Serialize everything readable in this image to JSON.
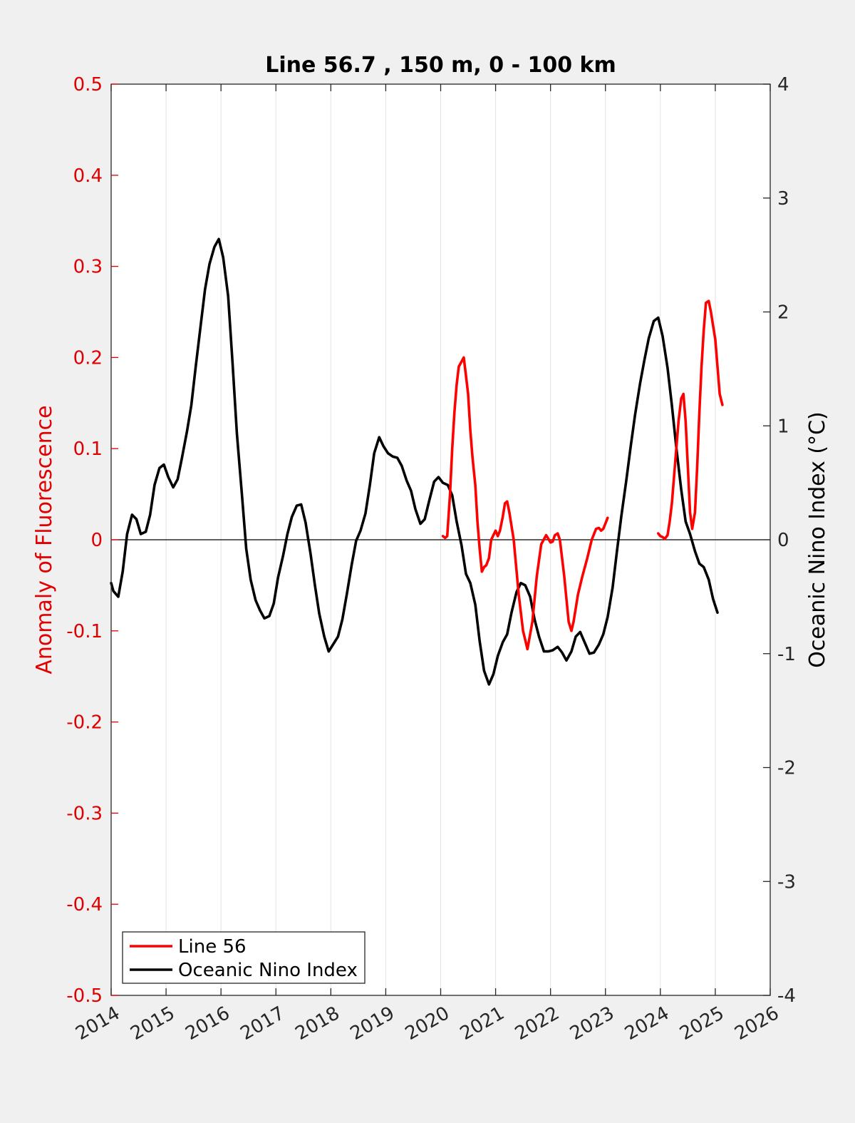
{
  "chart_data": {
    "type": "line",
    "title": "Line 56.7 , 150 m, 0 - 100 km",
    "xlabel": "",
    "ylabel_left": "Anomaly of Fluorescence",
    "ylabel_right": "Oceanic Nino Index (°C)",
    "xlim": [
      2014,
      2026
    ],
    "ylim_left": [
      -0.5,
      0.5
    ],
    "ylim_right": [
      -4,
      4
    ],
    "x_ticks": [
      2014,
      2015,
      2016,
      2017,
      2018,
      2019,
      2020,
      2021,
      2022,
      2023,
      2024,
      2025,
      2026
    ],
    "x_tick_labels": [
      "2014",
      "2015",
      "2016",
      "2017",
      "2018",
      "2019",
      "2020",
      "2021",
      "2022",
      "2023",
      "2024",
      "2025",
      "2026"
    ],
    "y_left_ticks": [
      0.5,
      0.4,
      0.3,
      0.2,
      0.1,
      0,
      -0.1,
      -0.2,
      -0.3,
      -0.4,
      -0.5
    ],
    "y_left_tick_labels": [
      "0.5",
      "0.4",
      "0.3",
      "0.2",
      "0.1",
      "0",
      "-0.1",
      "-0.2",
      "-0.3",
      "-0.4",
      "-0.5"
    ],
    "y_right_ticks": [
      4,
      3,
      2,
      1,
      0,
      -1,
      -2,
      -3,
      -4
    ],
    "y_right_tick_labels": [
      "4",
      "3",
      "2",
      "1",
      "0",
      "-1",
      "-2",
      "-3",
      "-4"
    ],
    "grid": "vertical",
    "zero_line": true,
    "legend_position": "bottom-left",
    "colors": {
      "line56": "#ff0000",
      "oni": "#000000",
      "left_axis": "#e00000",
      "right_axis": "#000000"
    },
    "series": [
      {
        "name": "Line 56",
        "axis": "left",
        "segments": [
          [
            [
              2020.04,
              0.004
            ],
            [
              2020.08,
              0.002
            ],
            [
              2020.12,
              0.004
            ],
            [
              2020.17,
              0.05
            ],
            [
              2020.21,
              0.1
            ],
            [
              2020.25,
              0.14
            ],
            [
              2020.29,
              0.17
            ],
            [
              2020.33,
              0.19
            ],
            [
              2020.42,
              0.2
            ],
            [
              2020.46,
              0.18
            ],
            [
              2020.5,
              0.16
            ],
            [
              2020.54,
              0.12
            ],
            [
              2020.58,
              0.09
            ],
            [
              2020.63,
              0.06
            ],
            [
              2020.67,
              0.02
            ],
            [
              2020.71,
              -0.01
            ],
            [
              2020.75,
              -0.035
            ],
            [
              2020.79,
              -0.03
            ],
            [
              2020.83,
              -0.028
            ],
            [
              2020.88,
              -0.02
            ],
            [
              2020.92,
              0.0
            ],
            [
              2021.0,
              0.01
            ],
            [
              2021.04,
              0.004
            ],
            [
              2021.08,
              0.01
            ],
            [
              2021.13,
              0.025
            ],
            [
              2021.17,
              0.04
            ],
            [
              2021.21,
              0.042
            ],
            [
              2021.25,
              0.03
            ],
            [
              2021.33,
              0.0
            ],
            [
              2021.42,
              -0.06
            ],
            [
              2021.5,
              -0.1
            ],
            [
              2021.58,
              -0.12
            ],
            [
              2021.67,
              -0.09
            ],
            [
              2021.75,
              -0.04
            ],
            [
              2021.83,
              -0.005
            ],
            [
              2021.92,
              0.005
            ],
            [
              2022.0,
              -0.003
            ],
            [
              2022.04,
              -0.002
            ],
            [
              2022.08,
              0.005
            ],
            [
              2022.13,
              0.007
            ],
            [
              2022.17,
              0.0
            ],
            [
              2022.25,
              -0.04
            ],
            [
              2022.33,
              -0.09
            ],
            [
              2022.38,
              -0.1
            ],
            [
              2022.42,
              -0.09
            ],
            [
              2022.5,
              -0.06
            ],
            [
              2022.58,
              -0.04
            ],
            [
              2022.67,
              -0.02
            ],
            [
              2022.75,
              0.0
            ],
            [
              2022.83,
              0.012
            ],
            [
              2022.88,
              0.013
            ],
            [
              2022.92,
              0.01
            ],
            [
              2022.96,
              0.012
            ],
            [
              2023.0,
              0.018
            ],
            [
              2023.04,
              0.024
            ]
          ],
          [
            [
              2023.96,
              0.007
            ],
            [
              2024.0,
              0.004
            ],
            [
              2024.04,
              0.003
            ],
            [
              2024.08,
              0.001
            ],
            [
              2024.13,
              0.005
            ],
            [
              2024.17,
              0.02
            ],
            [
              2024.21,
              0.04
            ],
            [
              2024.25,
              0.07
            ],
            [
              2024.29,
              0.1
            ],
            [
              2024.33,
              0.13
            ],
            [
              2024.38,
              0.155
            ],
            [
              2024.42,
              0.16
            ],
            [
              2024.46,
              0.13
            ],
            [
              2024.5,
              0.08
            ],
            [
              2024.54,
              0.03
            ],
            [
              2024.58,
              0.012
            ],
            [
              2024.63,
              0.03
            ],
            [
              2024.67,
              0.08
            ],
            [
              2024.71,
              0.14
            ],
            [
              2024.75,
              0.19
            ],
            [
              2024.79,
              0.23
            ],
            [
              2024.83,
              0.26
            ],
            [
              2024.88,
              0.262
            ],
            [
              2024.92,
              0.25
            ],
            [
              2024.96,
              0.235
            ],
            [
              2025.0,
              0.22
            ],
            [
              2025.04,
              0.19
            ],
            [
              2025.08,
              0.16
            ],
            [
              2025.13,
              0.148
            ]
          ]
        ]
      },
      {
        "name": "Oceanic Nino Index",
        "axis": "right",
        "segments": [
          [
            [
              2014.0,
              -0.38
            ],
            [
              2014.04,
              -0.45
            ],
            [
              2014.13,
              -0.5
            ],
            [
              2014.21,
              -0.28
            ],
            [
              2014.29,
              0.05
            ],
            [
              2014.38,
              0.22
            ],
            [
              2014.46,
              0.18
            ],
            [
              2014.54,
              0.05
            ],
            [
              2014.63,
              0.07
            ],
            [
              2014.71,
              0.22
            ],
            [
              2014.79,
              0.48
            ],
            [
              2014.88,
              0.63
            ],
            [
              2014.96,
              0.66
            ],
            [
              2015.04,
              0.55
            ],
            [
              2015.13,
              0.46
            ],
            [
              2015.21,
              0.53
            ],
            [
              2015.29,
              0.72
            ],
            [
              2015.38,
              0.95
            ],
            [
              2015.46,
              1.18
            ],
            [
              2015.54,
              1.52
            ],
            [
              2015.63,
              1.88
            ],
            [
              2015.71,
              2.2
            ],
            [
              2015.79,
              2.42
            ],
            [
              2015.88,
              2.57
            ],
            [
              2015.96,
              2.64
            ],
            [
              2016.04,
              2.48
            ],
            [
              2016.13,
              2.14
            ],
            [
              2016.21,
              1.55
            ],
            [
              2016.29,
              0.93
            ],
            [
              2016.38,
              0.4
            ],
            [
              2016.46,
              -0.08
            ],
            [
              2016.54,
              -0.35
            ],
            [
              2016.63,
              -0.53
            ],
            [
              2016.71,
              -0.62
            ],
            [
              2016.79,
              -0.69
            ],
            [
              2016.88,
              -0.67
            ],
            [
              2016.96,
              -0.56
            ],
            [
              2017.04,
              -0.33
            ],
            [
              2017.13,
              -0.14
            ],
            [
              2017.21,
              0.05
            ],
            [
              2017.29,
              0.2
            ],
            [
              2017.38,
              0.3
            ],
            [
              2017.46,
              0.31
            ],
            [
              2017.54,
              0.15
            ],
            [
              2017.63,
              -0.12
            ],
            [
              2017.71,
              -0.4
            ],
            [
              2017.79,
              -0.65
            ],
            [
              2017.88,
              -0.85
            ],
            [
              2017.96,
              -0.98
            ],
            [
              2018.04,
              -0.92
            ],
            [
              2018.13,
              -0.85
            ],
            [
              2018.21,
              -0.7
            ],
            [
              2018.29,
              -0.48
            ],
            [
              2018.38,
              -0.22
            ],
            [
              2018.46,
              -0.01
            ],
            [
              2018.54,
              0.08
            ],
            [
              2018.63,
              0.23
            ],
            [
              2018.71,
              0.48
            ],
            [
              2018.79,
              0.76
            ],
            [
              2018.88,
              0.9
            ],
            [
              2018.96,
              0.82
            ],
            [
              2019.04,
              0.76
            ],
            [
              2019.13,
              0.73
            ],
            [
              2019.21,
              0.72
            ],
            [
              2019.29,
              0.65
            ],
            [
              2019.38,
              0.52
            ],
            [
              2019.46,
              0.43
            ],
            [
              2019.54,
              0.27
            ],
            [
              2019.63,
              0.14
            ],
            [
              2019.71,
              0.18
            ],
            [
              2019.79,
              0.34
            ],
            [
              2019.88,
              0.51
            ],
            [
              2019.96,
              0.55
            ],
            [
              2020.04,
              0.5
            ],
            [
              2020.13,
              0.48
            ],
            [
              2020.21,
              0.39
            ],
            [
              2020.29,
              0.16
            ],
            [
              2020.38,
              -0.05
            ],
            [
              2020.46,
              -0.3
            ],
            [
              2020.54,
              -0.38
            ],
            [
              2020.63,
              -0.57
            ],
            [
              2020.71,
              -0.89
            ],
            [
              2020.79,
              -1.15
            ],
            [
              2020.88,
              -1.27
            ],
            [
              2020.96,
              -1.18
            ],
            [
              2021.04,
              -1.02
            ],
            [
              2021.13,
              -0.9
            ],
            [
              2021.21,
              -0.83
            ],
            [
              2021.29,
              -0.64
            ],
            [
              2021.38,
              -0.46
            ],
            [
              2021.46,
              -0.38
            ],
            [
              2021.54,
              -0.4
            ],
            [
              2021.63,
              -0.5
            ],
            [
              2021.71,
              -0.7
            ],
            [
              2021.79,
              -0.85
            ],
            [
              2021.88,
              -0.98
            ],
            [
              2021.96,
              -0.98
            ],
            [
              2022.04,
              -0.97
            ],
            [
              2022.13,
              -0.94
            ],
            [
              2022.21,
              -0.99
            ],
            [
              2022.29,
              -1.06
            ],
            [
              2022.38,
              -0.98
            ],
            [
              2022.46,
              -0.85
            ],
            [
              2022.54,
              -0.81
            ],
            [
              2022.63,
              -0.91
            ],
            [
              2022.71,
              -1.0
            ],
            [
              2022.79,
              -0.99
            ],
            [
              2022.88,
              -0.92
            ],
            [
              2022.96,
              -0.83
            ],
            [
              2023.04,
              -0.68
            ],
            [
              2023.13,
              -0.42
            ],
            [
              2023.21,
              -0.1
            ],
            [
              2023.29,
              0.21
            ],
            [
              2023.38,
              0.52
            ],
            [
              2023.46,
              0.82
            ],
            [
              2023.54,
              1.1
            ],
            [
              2023.63,
              1.37
            ],
            [
              2023.71,
              1.58
            ],
            [
              2023.79,
              1.77
            ],
            [
              2023.88,
              1.92
            ],
            [
              2023.96,
              1.95
            ],
            [
              2024.04,
              1.79
            ],
            [
              2024.13,
              1.51
            ],
            [
              2024.21,
              1.18
            ],
            [
              2024.29,
              0.81
            ],
            [
              2024.38,
              0.44
            ],
            [
              2024.46,
              0.16
            ],
            [
              2024.54,
              0.05
            ],
            [
              2024.63,
              -0.1
            ],
            [
              2024.71,
              -0.21
            ],
            [
              2024.79,
              -0.24
            ],
            [
              2024.88,
              -0.35
            ],
            [
              2024.96,
              -0.52
            ],
            [
              2025.04,
              -0.64
            ]
          ]
        ]
      }
    ]
  }
}
